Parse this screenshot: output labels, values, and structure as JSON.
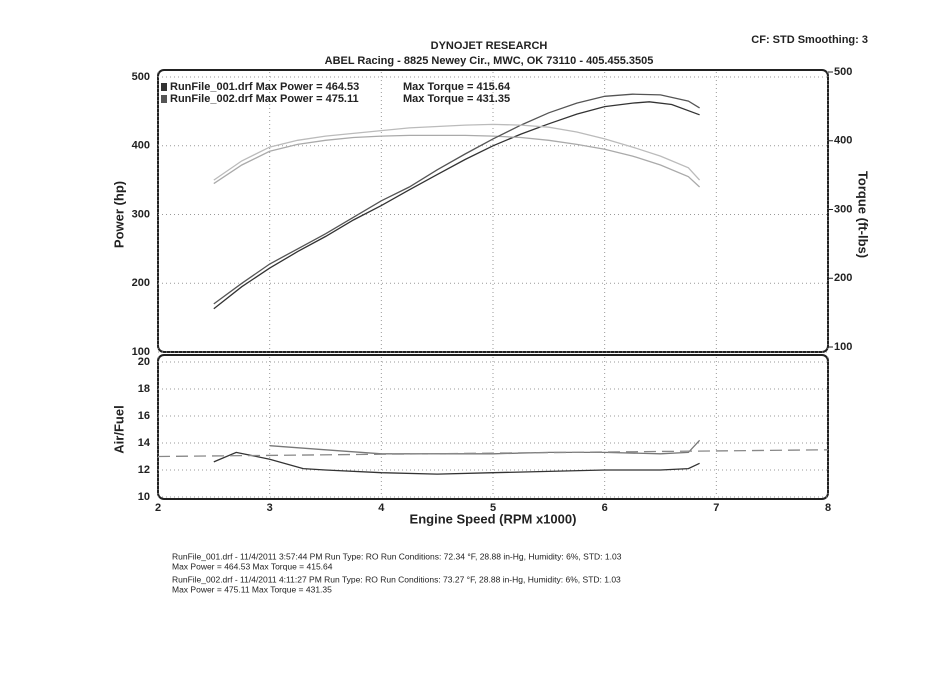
{
  "header": {
    "title": "DYNOJET RESEARCH",
    "subtitle": "ABEL Racing - 8825 Newey Cir., MWC, OK 73110 - 405.455.3505",
    "settings": "CF: STD  Smoothing: 3"
  },
  "chart_data": [
    {
      "type": "line",
      "ylabel": "Power (hp)",
      "y2label": "Torque (ft-lbs)",
      "ylim": [
        100,
        500
      ],
      "yticks": [
        100,
        200,
        300,
        400,
        500
      ],
      "y2lim": [
        100,
        500
      ],
      "y2ticks": [
        100,
        200,
        300,
        400,
        500
      ],
      "grid": true,
      "series": [
        {
          "name": "RunFile_001.drf Max Power = 464.53",
          "color": "#333333",
          "axis": "y",
          "x": [
            2.5,
            2.75,
            3,
            3.25,
            3.5,
            3.75,
            4,
            4.25,
            4.5,
            4.75,
            5,
            5.25,
            5.5,
            5.75,
            6,
            6.25,
            6.4,
            6.6,
            6.85
          ],
          "values": [
            163,
            195,
            222,
            246,
            268,
            292,
            313,
            336,
            358,
            380,
            400,
            417,
            432,
            446,
            457,
            462,
            464,
            460,
            445
          ]
        },
        {
          "name": "Max Torque = 415.64",
          "color": "#aaaaaa",
          "axis": "y2",
          "x": [
            2.5,
            2.75,
            3,
            3.25,
            3.5,
            3.75,
            4,
            4.25,
            4.5,
            4.75,
            5,
            5.25,
            5.5,
            5.75,
            6,
            6.25,
            6.5,
            6.75,
            6.85
          ],
          "values": [
            345,
            372,
            392,
            402,
            408,
            412,
            414,
            415,
            415,
            415,
            414,
            412,
            408,
            402,
            395,
            385,
            372,
            355,
            340
          ]
        },
        {
          "name": "RunFile_002.drf Max Power = 475.11",
          "color": "#555555",
          "axis": "y",
          "x": [
            2.5,
            2.75,
            3,
            3.25,
            3.5,
            3.75,
            4,
            4.25,
            4.5,
            4.75,
            5,
            5.25,
            5.5,
            5.75,
            6,
            6.25,
            6.5,
            6.75,
            6.85
          ],
          "values": [
            170,
            200,
            228,
            250,
            272,
            296,
            320,
            340,
            365,
            388,
            410,
            430,
            448,
            462,
            472,
            475,
            474,
            465,
            455
          ]
        },
        {
          "name": "Max Torque = 431.35",
          "color": "#bbbbbb",
          "axis": "y2",
          "x": [
            2.5,
            2.75,
            3,
            3.25,
            3.5,
            3.75,
            4,
            4.25,
            4.5,
            4.75,
            5,
            5.25,
            5.5,
            5.75,
            6,
            6.25,
            6.5,
            6.75,
            6.85
          ],
          "values": [
            350,
            378,
            398,
            408,
            414,
            418,
            422,
            426,
            428,
            430,
            431,
            430,
            427,
            420,
            410,
            398,
            385,
            368,
            350
          ]
        }
      ]
    },
    {
      "type": "line",
      "ylabel": "Air/Fuel",
      "xlabel": "Engine Speed (RPM x1000)",
      "xlim": [
        2,
        8
      ],
      "xticks": [
        2,
        3,
        4,
        5,
        6,
        7,
        8
      ],
      "ylim": [
        10,
        20
      ],
      "yticks": [
        10,
        12,
        14,
        16,
        18,
        20
      ],
      "grid": true,
      "series": [
        {
          "color": "#333333",
          "x": [
            2.5,
            2.7,
            3,
            3.3,
            3.5,
            4,
            4.5,
            5,
            5.5,
            6,
            6.5,
            6.75,
            6.85
          ],
          "values": [
            12.6,
            13.3,
            12.8,
            12.1,
            12.0,
            11.8,
            11.7,
            11.8,
            11.9,
            12.0,
            12.0,
            12.1,
            12.5
          ]
        },
        {
          "color": "#777777",
          "x": [
            3,
            3.5,
            4,
            4.5,
            5,
            5.5,
            6,
            6.5,
            6.75,
            6.85
          ],
          "values": [
            13.8,
            13.5,
            13.2,
            13.2,
            13.2,
            13.3,
            13.3,
            13.2,
            13.3,
            14.2
          ]
        },
        {
          "color": "#888888",
          "dashed": true,
          "x": [
            2,
            8
          ],
          "values": [
            13,
            13.5
          ]
        }
      ]
    }
  ],
  "notes": [
    {
      "color": "#333333",
      "lines": [
        "RunFile_001.drf - 11/4/2011 3:57:44 PM  Run Type: RO  Run Conditions: 72.34 °F, 28.88 in-Hg,  Humidity:  6%, STD: 1.03",
        "Max Power = 464.53  Max Torque = 415.64"
      ]
    },
    {
      "color": "#888888",
      "lines": [
        "RunFile_002.drf - 11/4/2011 4:11:27 PM  Run Type: RO  Run Conditions: 73.27 °F, 28.88 in-Hg,  Humidity:  6%, STD: 1.03",
        "Max Power = 475.11  Max Torque = 431.35"
      ]
    }
  ]
}
